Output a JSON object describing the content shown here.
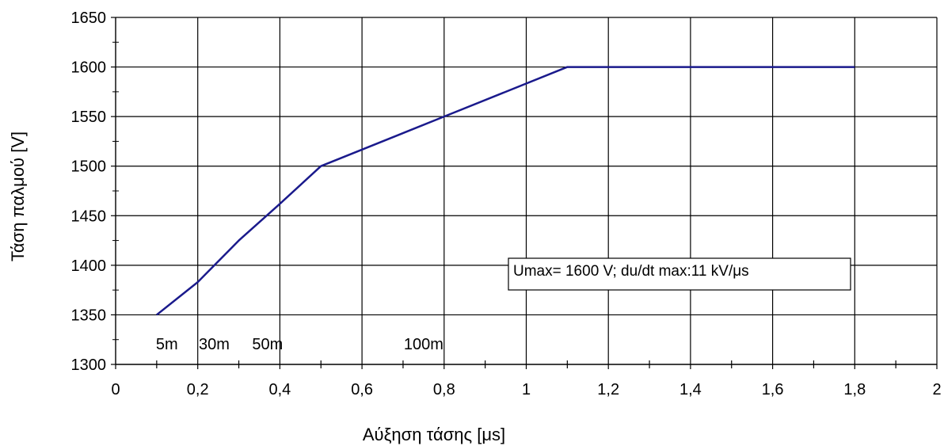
{
  "chart_data": {
    "type": "line",
    "title": "",
    "xlabel": "Αύξηση τάσης [μs]",
    "ylabel": "Τάση παλμού [V]",
    "xlim": [
      0,
      2
    ],
    "ylim": [
      1300,
      1650
    ],
    "x_ticks": [
      0,
      0.2,
      0.4,
      0.6,
      0.8,
      1,
      1.2,
      1.4,
      1.6,
      1.8,
      2
    ],
    "x_tick_labels": [
      "0",
      "0,2",
      "0,4",
      "0,6",
      "0,8",
      "1",
      "1,2",
      "1,4",
      "1,6",
      "1,8",
      "2"
    ],
    "y_ticks": [
      1300,
      1350,
      1400,
      1450,
      1500,
      1550,
      1600,
      1650
    ],
    "y_tick_labels": [
      "1300",
      "1350",
      "1400",
      "1450",
      "1500",
      "1550",
      "1600",
      "1650"
    ],
    "grid": true,
    "line_color": "#1a1a8c",
    "series": [
      {
        "x": [
          0.1,
          0.2,
          0.3,
          0.4,
          0.5,
          0.8,
          1.1,
          1.8
        ],
        "y": [
          1350,
          1383,
          1425,
          1462,
          1500,
          1550,
          1600,
          1600
        ]
      }
    ],
    "distance_labels": [
      {
        "x": 0.125,
        "text": "5m"
      },
      {
        "x": 0.24,
        "text": "30m"
      },
      {
        "x": 0.37,
        "text": "50m"
      },
      {
        "x": 0.75,
        "text": "100m"
      }
    ],
    "annotation": "Umax= 1600 V; du/dt max:11 kV/μs"
  }
}
